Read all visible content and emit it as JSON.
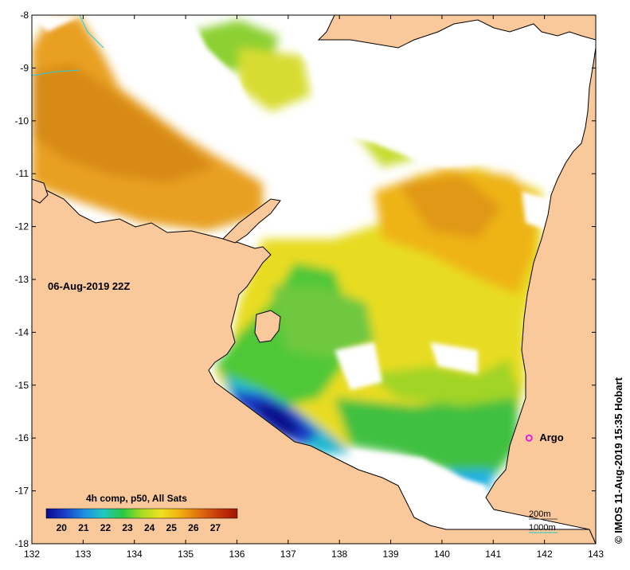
{
  "map": {
    "timestamp": "06-Aug-2019 22Z",
    "credit": "© IMOS 11-Aug-2019 15:35 Hobart",
    "x_ticks": [
      "132",
      "133",
      "134",
      "135",
      "136",
      "137",
      "138",
      "139",
      "140",
      "141",
      "142",
      "143"
    ],
    "y_ticks": [
      "-8",
      "-9",
      "-10",
      "-11",
      "-12",
      "-13",
      "-14",
      "-15",
      "-16",
      "-17",
      "-18"
    ],
    "lon_range": [
      132,
      143
    ],
    "lat_range": [
      -18,
      -8
    ],
    "argo": {
      "label": "Argo",
      "lon": 141.7,
      "lat": -16.0,
      "color": "#e020e0"
    },
    "contours": {
      "c200": "200m",
      "c1000": "1000m"
    },
    "colorbar": {
      "title": "4h comp, p50, All Sats",
      "ticks": [
        "20",
        "21",
        "22",
        "23",
        "24",
        "25",
        "26",
        "27"
      ],
      "range": [
        19.3,
        28.0
      ],
      "colors": [
        "#0a0a8c",
        "#1a3fc8",
        "#1e90e0",
        "#20c8c0",
        "#28c840",
        "#a8dc20",
        "#f0e020",
        "#f0b010",
        "#e07010",
        "#c83808",
        "#a01404"
      ]
    },
    "colors": {
      "land": "#f9c89b",
      "cloud": "#ffffff",
      "coast": "#000000"
    }
  }
}
